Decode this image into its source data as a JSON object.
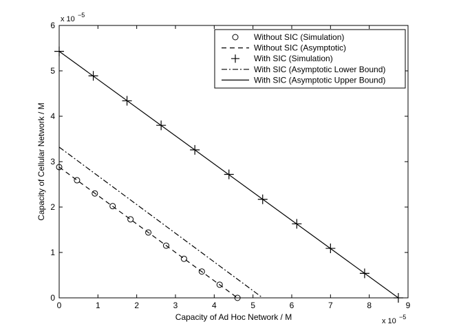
{
  "chart_data": {
    "type": "line",
    "xlabel": "Capacity of Ad Hoc Network / M",
    "ylabel": "Capacity of Cellular Network / M",
    "xlim": [
      0,
      9
    ],
    "ylim": [
      0,
      6
    ],
    "x_exponent_base": "x 10",
    "x_exponent_power": "−5",
    "y_exponent_base": "x 10",
    "y_exponent_power": "−5",
    "xticks": [
      "0",
      "1",
      "2",
      "3",
      "4",
      "5",
      "6",
      "7",
      "8",
      "9"
    ],
    "yticks": [
      "0",
      "1",
      "2",
      "3",
      "4",
      "5",
      "6"
    ],
    "grid": false,
    "legend_position": "top-right",
    "series": [
      {
        "name": "Without SIC (Simulation)",
        "style": "circle-markers",
        "x": [
          0,
          0.46,
          0.92,
          1.38,
          1.84,
          2.3,
          2.76,
          3.22,
          3.68,
          4.14,
          4.6
        ],
        "y": [
          2.88,
          2.59,
          2.3,
          2.02,
          1.73,
          1.44,
          1.15,
          0.86,
          0.58,
          0.29,
          0
        ]
      },
      {
        "name": "Without SIC (Asymptotic)",
        "style": "dashed",
        "x": [
          0,
          4.6
        ],
        "y": [
          2.88,
          0
        ]
      },
      {
        "name": "With SIC (Simulation)",
        "style": "plus-markers",
        "x": [
          0,
          0.88,
          1.75,
          2.63,
          3.5,
          4.38,
          5.25,
          6.13,
          7.0,
          7.88,
          8.75
        ],
        "y": [
          5.43,
          4.89,
          4.34,
          3.8,
          3.26,
          2.72,
          2.17,
          1.63,
          1.09,
          0.54,
          0
        ]
      },
      {
        "name": "With SIC (Asymptotic Lower Bound)",
        "style": "dashdot",
        "x": [
          0,
          5.25
        ],
        "y": [
          3.32,
          0
        ]
      },
      {
        "name": "With SIC (Asymptotic Upper Bound)",
        "style": "solid",
        "x": [
          0,
          8.75
        ],
        "y": [
          5.43,
          0
        ]
      }
    ]
  }
}
